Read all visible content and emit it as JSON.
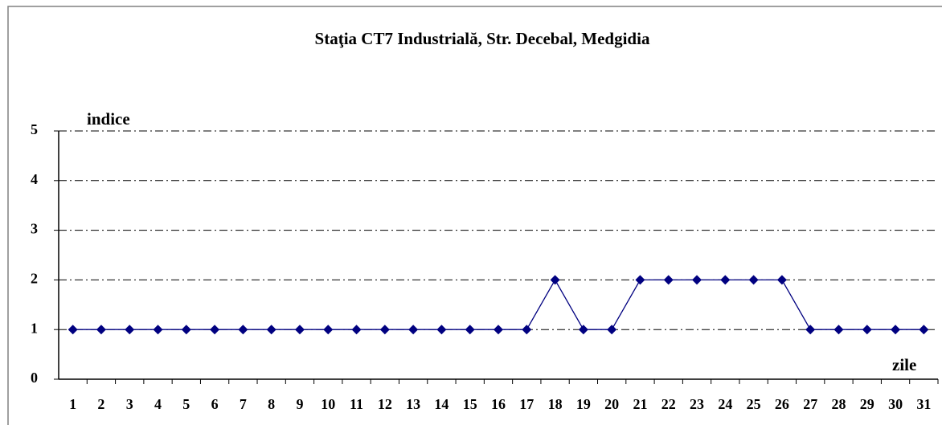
{
  "chart_data": {
    "type": "line",
    "title": "Staţia CT7 Industrială,  Str. Decebal, Medgidia",
    "y_label": "indice",
    "x_label": "zile",
    "categories": [
      "1",
      "2",
      "3",
      "4",
      "5",
      "6",
      "7",
      "8",
      "9",
      "10",
      "11",
      "12",
      "13",
      "14",
      "15",
      "16",
      "17",
      "18",
      "19",
      "20",
      "21",
      "22",
      "23",
      "24",
      "25",
      "26",
      "27",
      "28",
      "29",
      "30",
      "31"
    ],
    "values": [
      1,
      1,
      1,
      1,
      1,
      1,
      1,
      1,
      1,
      1,
      1,
      1,
      1,
      1,
      1,
      1,
      1,
      2,
      1,
      1,
      2,
      2,
      2,
      2,
      2,
      2,
      1,
      1,
      1,
      1,
      1
    ],
    "color": "#000080",
    "ylim": [
      0,
      5
    ],
    "yticks": [
      0,
      1,
      2,
      3,
      4,
      5
    ],
    "grid": true
  }
}
